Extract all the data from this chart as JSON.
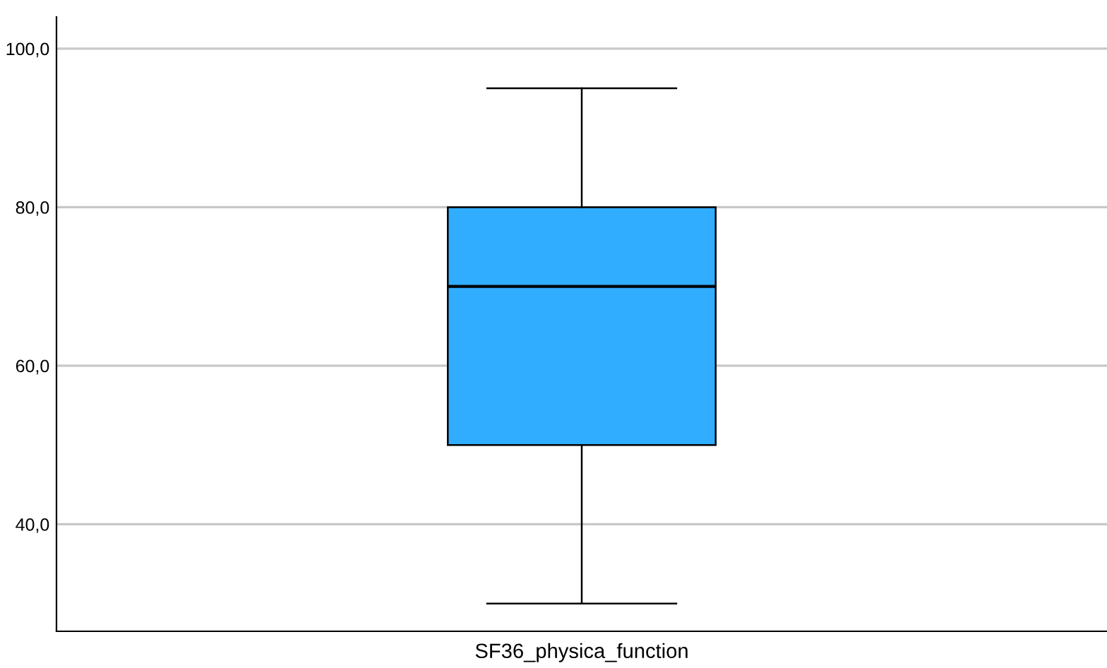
{
  "chart_data": {
    "type": "box",
    "categories": [
      "SF36_physica_function"
    ],
    "boxes": [
      {
        "low": 30,
        "q1": 50,
        "median": 70,
        "q3": 80,
        "high": 95
      }
    ],
    "color": "#31adff",
    "ylim": [
      26.5,
      104
    ],
    "yticks": [
      {
        "value": 40,
        "label": "40,0"
      },
      {
        "value": 60,
        "label": "60,0"
      },
      {
        "value": 80,
        "label": "80,0"
      },
      {
        "value": 100,
        "label": "100,0"
      }
    ],
    "grid": "y"
  }
}
